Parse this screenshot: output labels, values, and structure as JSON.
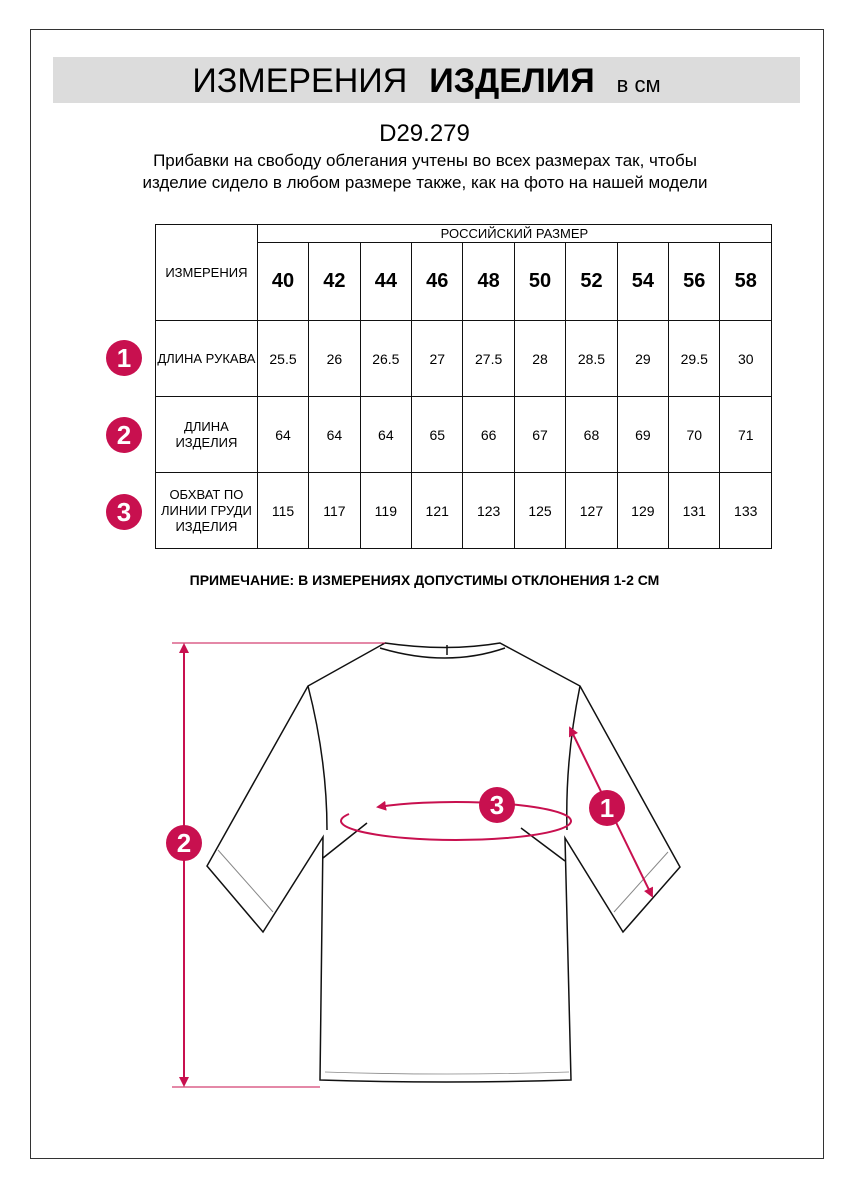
{
  "header": {
    "title_regular": "ИЗМЕРЕНИЯ",
    "title_bold": "ИЗДЕЛИЯ",
    "unit": "в см"
  },
  "model_code": "D29.279",
  "description": "Прибавки на свободу облегания учтены во всех размерах так, чтобы изделие сидело в любом размере также, как на фото на нашей модели",
  "table": {
    "group_header": "РОССИЙСКИЙ РАЗМЕР",
    "measure_header": "ИЗМЕРЕНИЯ",
    "sizes": [
      "40",
      "42",
      "44",
      "46",
      "48",
      "50",
      "52",
      "54",
      "56",
      "58"
    ],
    "rows": [
      {
        "num": "1",
        "label": "ДЛИНА РУКАВА",
        "values": [
          "25.5",
          "26",
          "26.5",
          "27",
          "27.5",
          "28",
          "28.5",
          "29",
          "29.5",
          "30"
        ]
      },
      {
        "num": "2",
        "label": "ДЛИНА ИЗДЕЛИЯ",
        "values": [
          "64",
          "64",
          "64",
          "65",
          "66",
          "67",
          "68",
          "69",
          "70",
          "71"
        ]
      },
      {
        "num": "3",
        "label": "ОБХВАТ ПО ЛИНИИ ГРУДИ ИЗДЕЛИЯ",
        "values": [
          "115",
          "117",
          "119",
          "121",
          "123",
          "125",
          "127",
          "129",
          "131",
          "133"
        ]
      }
    ]
  },
  "remark": "ПРИМЕЧАНИЕ: В ИЗМЕРЕНИЯХ ДОПУСТИМЫ ОТКЛОНЕНИЯ 1-2 СМ",
  "diagram": {
    "badges": [
      "1",
      "2",
      "3"
    ]
  },
  "colors": {
    "accent": "#c8104f",
    "banner": "#dcdcdc"
  }
}
